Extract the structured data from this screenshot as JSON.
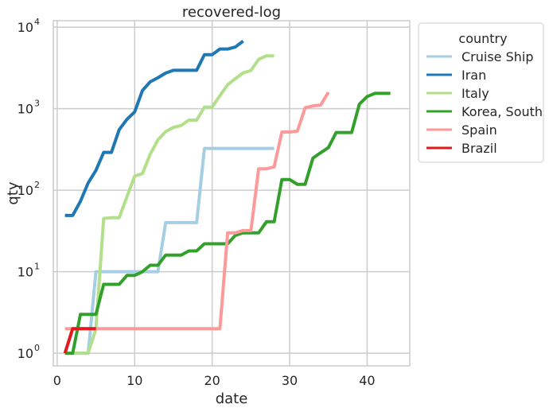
{
  "chart_data": {
    "type": "line",
    "title": "recovered-log",
    "xlabel": "date",
    "ylabel": "qty",
    "xlim": [
      -0.5,
      45.5
    ],
    "ylim": [
      0.7,
      12000
    ],
    "yscale": "log",
    "grid": true,
    "x_ticks": [
      0,
      10,
      20,
      30,
      40
    ],
    "x_tick_labels": [
      "0",
      "10",
      "20",
      "30",
      "40"
    ],
    "y_ticks": [
      1,
      10,
      100,
      1000,
      10000
    ],
    "y_tick_labels": [
      {
        "base": "10",
        "exp": "0"
      },
      {
        "base": "10",
        "exp": "1"
      },
      {
        "base": "10",
        "exp": "2"
      },
      {
        "base": "10",
        "exp": "3"
      },
      {
        "base": "10",
        "exp": "4"
      }
    ],
    "legend": {
      "title": "country",
      "position": "outside-right"
    },
    "series": [
      {
        "name": "Cruise Ship",
        "color": "#a6cee3",
        "x": [
          1,
          2,
          3,
          4,
          5,
          6,
          7,
          8,
          9,
          10,
          11,
          12,
          13,
          14,
          15,
          16,
          17,
          18,
          19,
          20,
          21,
          22,
          23,
          24,
          25,
          26,
          27,
          28
        ],
        "y": [
          1,
          1,
          1,
          1,
          10,
          10,
          10,
          10,
          10,
          10,
          10,
          10,
          10,
          40,
          40,
          40,
          40,
          40,
          325,
          325,
          325,
          325,
          325,
          325,
          325,
          325,
          325,
          325
        ]
      },
      {
        "name": "Iran",
        "color": "#1f78b4",
        "x": [
          1,
          2,
          3,
          4,
          5,
          6,
          7,
          8,
          9,
          10,
          11,
          12,
          13,
          14,
          15,
          16,
          17,
          18,
          19,
          20,
          21,
          22,
          23,
          24
        ],
        "y": [
          49,
          49,
          73,
          123,
          175,
          291,
          291,
          552,
          739,
          913,
          1669,
          2134,
          2394,
          2731,
          2959,
          2959,
          2959,
          2959,
          4590,
          4590,
          5389,
          5389,
          5710,
          6745
        ]
      },
      {
        "name": "Italy",
        "color": "#b2df8a",
        "x": [
          1,
          2,
          3,
          4,
          5,
          6,
          7,
          8,
          9,
          10,
          11,
          12,
          13,
          14,
          15,
          16,
          17,
          18,
          19,
          20,
          21,
          22,
          23,
          24,
          25,
          26,
          27,
          28
        ],
        "y": [
          1,
          1,
          1,
          1,
          2,
          45,
          46,
          46,
          83,
          149,
          160,
          276,
          414,
          523,
          589,
          622,
          724,
          724,
          1045,
          1045,
          1439,
          1966,
          2335,
          2749,
          2941,
          4025,
          4440,
          4440
        ]
      },
      {
        "name": "Korea, South",
        "color": "#33a02c",
        "x": [
          1,
          2,
          3,
          4,
          5,
          6,
          7,
          8,
          9,
          10,
          11,
          12,
          13,
          14,
          15,
          16,
          17,
          18,
          19,
          20,
          21,
          22,
          23,
          24,
          25,
          26,
          27,
          28,
          29,
          30,
          31,
          32,
          33,
          34,
          35,
          36,
          37,
          38,
          39,
          40,
          41,
          42,
          43
        ],
        "y": [
          1,
          1,
          3,
          3,
          3,
          7,
          7,
          7,
          9,
          9,
          10,
          12,
          12,
          16,
          16,
          16,
          18,
          18,
          22,
          22,
          22,
          22,
          28,
          30,
          30,
          30,
          41,
          41,
          135,
          135,
          118,
          118,
          247,
          288,
          333,
          510,
          510,
          510,
          1137,
          1407,
          1540,
          1540,
          1540
        ]
      },
      {
        "name": "Spain",
        "color": "#fb9a99",
        "x": [
          1,
          2,
          3,
          4,
          5,
          6,
          7,
          8,
          9,
          10,
          11,
          12,
          13,
          14,
          15,
          16,
          17,
          18,
          19,
          20,
          21,
          22,
          23,
          24,
          25,
          26,
          27,
          28,
          29,
          30,
          31,
          32,
          33,
          34,
          35
        ],
        "y": [
          2,
          2,
          2,
          2,
          2,
          2,
          2,
          2,
          2,
          2,
          2,
          2,
          2,
          2,
          2,
          2,
          2,
          2,
          2,
          2,
          2,
          30,
          30,
          32,
          32,
          183,
          183,
          193,
          517,
          517,
          530,
          1028,
          1081,
          1107,
          1588
        ]
      },
      {
        "name": "Brazil",
        "color": "#e31a1c",
        "x": [
          1,
          2,
          3,
          4,
          5
        ],
        "y": [
          1,
          2,
          2,
          2,
          2
        ]
      }
    ]
  }
}
